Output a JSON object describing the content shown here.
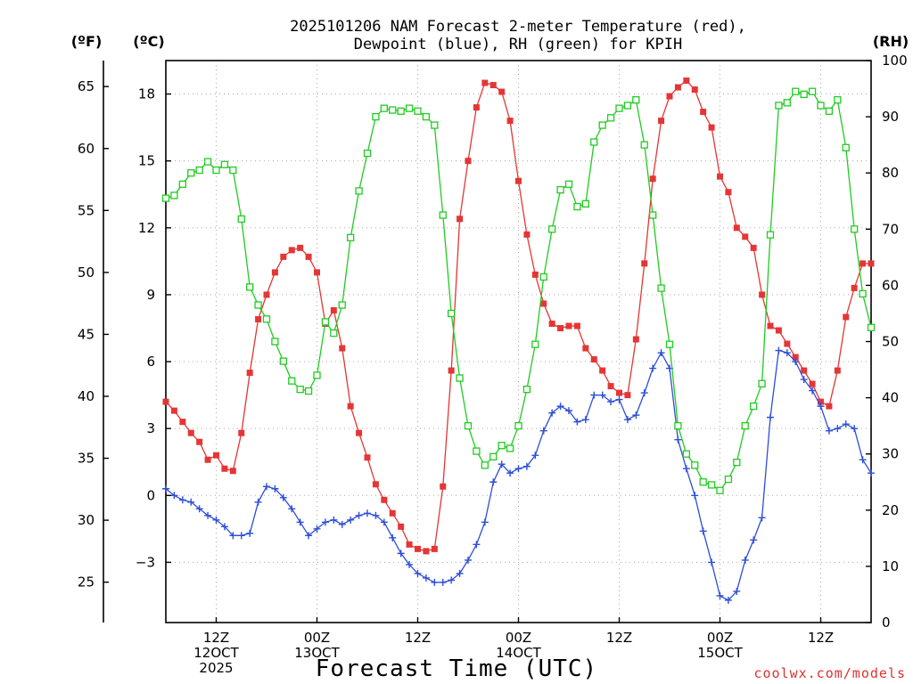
{
  "chart_data": {
    "type": "line",
    "title_lines": [
      "2025101206 NAM Forecast 2-meter Temperature (red),",
      "Dewpoint (blue), RH (green) for KPIH"
    ],
    "xlabel": "Forecast Time (UTC)",
    "units": {
      "fahrenheit": "(ºF)",
      "celsius": "(ºC)",
      "rh": "(RH)"
    },
    "credit": "coolwx.com/models",
    "grid": true,
    "x_unit": "forecast hour",
    "x_start": "2025-10-12 06Z",
    "xlim": [
      0,
      84
    ],
    "ylim_c": [
      -5.7,
      19.5
    ],
    "ylim_rh": [
      0,
      100
    ],
    "f_axis_range": [
      21.74,
      67.1
    ],
    "f_ticks": [
      25,
      30,
      35,
      40,
      45,
      50,
      55,
      60,
      65
    ],
    "c_ticks": [
      -3,
      0,
      3,
      6,
      9,
      12,
      15,
      18
    ],
    "rh_ticks": [
      0,
      10,
      20,
      30,
      40,
      50,
      60,
      70,
      80,
      90,
      100
    ],
    "x_ticks": [
      {
        "hour": 6,
        "lines": [
          "12Z",
          "12OCT",
          "2025"
        ]
      },
      {
        "hour": 18,
        "lines": [
          "00Z",
          "13OCT"
        ]
      },
      {
        "hour": 30,
        "lines": [
          "12Z"
        ]
      },
      {
        "hour": 42,
        "lines": [
          "00Z",
          "14OCT"
        ]
      },
      {
        "hour": 54,
        "lines": [
          "12Z"
        ]
      },
      {
        "hour": 66,
        "lines": [
          "00Z",
          "15OCT"
        ]
      },
      {
        "hour": 78,
        "lines": [
          "12Z"
        ]
      }
    ],
    "series": [
      {
        "key": "temperature",
        "axis": "celsius",
        "color": "#e53535",
        "marker": "filled-square",
        "x": [
          0,
          1,
          2,
          3,
          4,
          5,
          6,
          7,
          8,
          9,
          10,
          11,
          12,
          13,
          14,
          15,
          16,
          17,
          18,
          19,
          20,
          21,
          22,
          23,
          24,
          25,
          26,
          27,
          28,
          29,
          30,
          31,
          32,
          33,
          34,
          35,
          36,
          37,
          38,
          39,
          40,
          41,
          42,
          43,
          44,
          45,
          46,
          47,
          48,
          49,
          50,
          51,
          52,
          53,
          54,
          55,
          56,
          57,
          58,
          59,
          60,
          61,
          62,
          63,
          64,
          65,
          66,
          67,
          68,
          69,
          70,
          71,
          72,
          73,
          74,
          75,
          76,
          77,
          78,
          79,
          80,
          81,
          82,
          83,
          84
        ],
        "values": [
          4.2,
          3.8,
          3.3,
          2.8,
          2.4,
          1.6,
          1.8,
          1.2,
          1.1,
          2.8,
          5.5,
          7.9,
          9.0,
          10.0,
          10.7,
          11.0,
          11.1,
          10.7,
          10.0,
          7.7,
          8.3,
          6.6,
          4.0,
          2.8,
          1.7,
          0.5,
          -0.2,
          -0.8,
          -1.4,
          -2.2,
          -2.4,
          -2.5,
          -2.4,
          0.4,
          5.6,
          12.4,
          15.0,
          17.4,
          18.5,
          18.4,
          18.1,
          16.8,
          14.1,
          11.7,
          9.9,
          8.6,
          7.7,
          7.5,
          7.6,
          7.6,
          6.6,
          6.1,
          5.6,
          4.9,
          4.6,
          4.5,
          7.0,
          10.4,
          14.2,
          16.8,
          17.9,
          18.3,
          18.6,
          18.2,
          17.2,
          16.5,
          14.3,
          13.6,
          12.0,
          11.6,
          11.1,
          9.0,
          7.6,
          7.4,
          6.8,
          6.2,
          5.6,
          5.0,
          4.2,
          4.0,
          5.6,
          8.0,
          9.3,
          10.4,
          10.4
        ]
      },
      {
        "key": "dewpoint",
        "axis": "celsius",
        "color": "#2d4ed8",
        "marker": "plus",
        "x": [
          0,
          1,
          2,
          3,
          4,
          5,
          6,
          7,
          8,
          9,
          10,
          11,
          12,
          13,
          14,
          15,
          16,
          17,
          18,
          19,
          20,
          21,
          22,
          23,
          24,
          25,
          26,
          27,
          28,
          29,
          30,
          31,
          32,
          33,
          34,
          35,
          36,
          37,
          38,
          39,
          40,
          41,
          42,
          43,
          44,
          45,
          46,
          47,
          48,
          49,
          50,
          51,
          52,
          53,
          54,
          55,
          56,
          57,
          58,
          59,
          60,
          61,
          62,
          63,
          64,
          65,
          66,
          67,
          68,
          69,
          70,
          71,
          72,
          73,
          74,
          75,
          76,
          77,
          78,
          79,
          80,
          81,
          82,
          83,
          84
        ],
        "values": [
          0.3,
          0.0,
          -0.2,
          -0.3,
          -0.6,
          -0.9,
          -1.1,
          -1.4,
          -1.8,
          -1.8,
          -1.7,
          -0.3,
          0.4,
          0.3,
          -0.1,
          -0.6,
          -1.2,
          -1.8,
          -1.5,
          -1.2,
          -1.1,
          -1.3,
          -1.1,
          -0.9,
          -0.8,
          -0.9,
          -1.2,
          -1.9,
          -2.6,
          -3.1,
          -3.5,
          -3.7,
          -3.9,
          -3.9,
          -3.8,
          -3.5,
          -2.9,
          -2.2,
          -1.2,
          0.6,
          1.4,
          1.0,
          1.2,
          1.3,
          1.8,
          2.9,
          3.7,
          4.0,
          3.8,
          3.3,
          3.4,
          4.5,
          4.5,
          4.2,
          4.3,
          3.4,
          3.6,
          4.6,
          5.7,
          6.4,
          5.7,
          2.5,
          1.2,
          0.0,
          -1.6,
          -3.0,
          -4.5,
          -4.7,
          -4.3,
          -2.9,
          -2.0,
          -1.0,
          3.5,
          6.5,
          6.4,
          6.0,
          5.2,
          4.7,
          4.0,
          2.9,
          3.0,
          3.2,
          3.0,
          1.6,
          1.0
        ]
      },
      {
        "key": "rh",
        "axis": "rh",
        "color": "#1fcc1f",
        "marker": "open-square",
        "x": [
          0,
          1,
          2,
          3,
          4,
          5,
          6,
          7,
          8,
          9,
          10,
          11,
          12,
          13,
          14,
          15,
          16,
          17,
          18,
          19,
          20,
          21,
          22,
          23,
          24,
          25,
          26,
          27,
          28,
          29,
          30,
          31,
          32,
          33,
          34,
          35,
          36,
          37,
          38,
          39,
          40,
          41,
          42,
          43,
          44,
          45,
          46,
          47,
          48,
          49,
          50,
          51,
          52,
          53,
          54,
          55,
          56,
          57,
          58,
          59,
          60,
          61,
          62,
          63,
          64,
          65,
          66,
          67,
          68,
          69,
          70,
          71,
          72,
          73,
          74,
          75,
          76,
          77,
          78,
          79,
          80,
          81,
          82,
          83,
          84
        ],
        "values": [
          75.5,
          76.0,
          78.0,
          80.0,
          80.5,
          82.0,
          80.5,
          81.5,
          80.5,
          71.8,
          59.7,
          56.5,
          54.0,
          50.0,
          46.5,
          43.0,
          41.5,
          41.2,
          44.0,
          53.5,
          51.5,
          56.5,
          68.5,
          76.8,
          83.5,
          90.0,
          91.5,
          91.2,
          91.0,
          91.5,
          91.0,
          90.0,
          88.5,
          72.5,
          55.0,
          43.5,
          35.0,
          30.5,
          28.0,
          29.5,
          31.5,
          31.0,
          35.0,
          41.5,
          49.5,
          61.5,
          70.0,
          77.0,
          78.0,
          74.0,
          74.5,
          85.5,
          88.5,
          89.8,
          91.5,
          92.0,
          93.0,
          85.0,
          72.5,
          59.5,
          49.5,
          35.0,
          30.0,
          28.0,
          25.0,
          24.5,
          23.5,
          25.5,
          28.5,
          35.0,
          38.5,
          42.5,
          69.0,
          92.0,
          92.5,
          94.5,
          94.0,
          94.5,
          92.0,
          91.0,
          93.0,
          84.5,
          70.0,
          58.5,
          52.5
        ]
      }
    ]
  }
}
